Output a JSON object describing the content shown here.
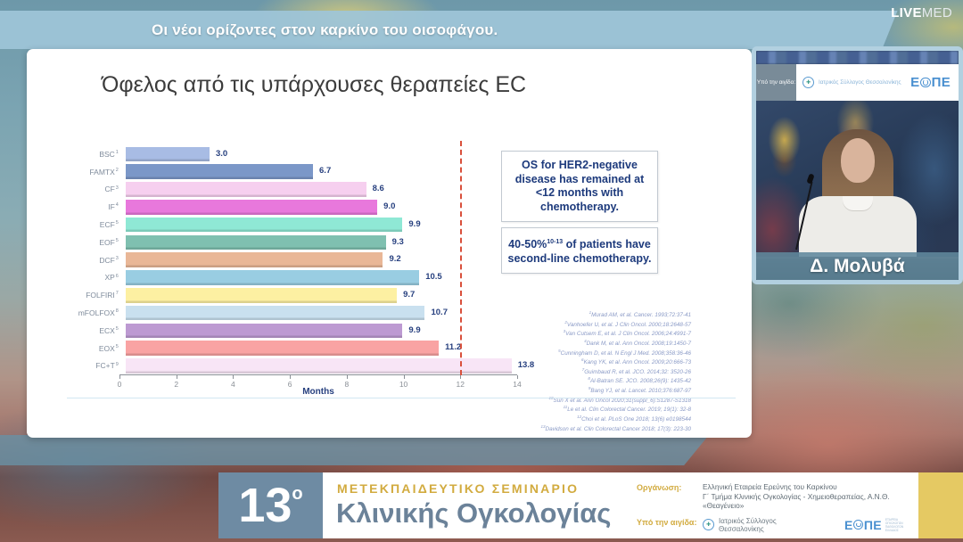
{
  "top_bar": {
    "title": "Οι νέοι ορίζοντες στον καρκίνο του οισοφάγου.",
    "brand_live": "LIVE",
    "brand_med": "MED"
  },
  "slide": {
    "title": "Όφελος από τις υπάρχουσες θεραπείες EC",
    "chart_data": {
      "type": "bar",
      "orientation": "horizontal",
      "categories": [
        "BSC",
        "FAMTX",
        "CF",
        "IF",
        "ECF",
        "EOF",
        "DCF",
        "XP",
        "FOLFIRI",
        "mFOLFOX",
        "ECX",
        "EOX",
        "FC+T"
      ],
      "category_superscripts": [
        "1",
        "2",
        "3",
        "4",
        "5",
        "5",
        "3",
        "6",
        "7",
        "8",
        "5",
        "5",
        "9"
      ],
      "values": [
        3.0,
        6.7,
        8.6,
        9.0,
        9.9,
        9.3,
        9.2,
        10.5,
        9.7,
        10.7,
        9.9,
        11.2,
        13.8
      ],
      "bar_colors": [
        "#a8bce4",
        "#7b97c8",
        "#f6cfef",
        "#e878dc",
        "#8fe8d5",
        "#7fc0b0",
        "#e9b797",
        "#99cde2",
        "#fdf0a2",
        "#c9e0ef",
        "#bd9ad2",
        "#f9a3a3",
        "#f8e5f6"
      ],
      "xlabel": "Months",
      "xlim": [
        0,
        14
      ],
      "xticks": [
        0,
        2,
        4,
        6,
        8,
        10,
        12,
        14
      ],
      "reference_line_x": 12,
      "reference_line_color": "#d9503c",
      "grid": false,
      "legend": false
    },
    "callouts": {
      "box1": "OS for HER2-negative disease has remained at <12 months with chemotherapy.",
      "box2_prefix": "40-50%",
      "box2_sup": "10-13",
      "box2_suffix": " of patients have second-line chemotherapy."
    },
    "references": [
      {
        "sup": "1",
        "text": "Murad AM, et al. Cancer. 1993;72:37-41"
      },
      {
        "sup": "2",
        "text": "Vanhoefer U, et al. J Clin Oncol. 2000;18:2648-57"
      },
      {
        "sup": "3",
        "text": "Van Cutsem E, et al. J Clin Oncol. 2006;24:4991-7"
      },
      {
        "sup": "4",
        "text": "Dank M, et al. Ann Oncol. 2008;19:1450-7"
      },
      {
        "sup": "5",
        "text": "Cunningham D, et al. N Engl J Med. 2008;358:36-46"
      },
      {
        "sup": "6",
        "text": "Kang YK, et al. Ann Oncol. 2009;20:666-73"
      },
      {
        "sup": "7",
        "text": "Guimbaud R, et al. JCO. 2014;32: 3520-26"
      },
      {
        "sup": "8",
        "text": "Al-Batran SE. JCO. 2008;26(9): 1435-42"
      },
      {
        "sup": "9",
        "text": "Bang YJ, et al. Lancet. 2010;376:687-97"
      },
      {
        "sup": "10",
        "text": "Sun X et al. Ann Oncol 2020;31(suppl_6):S1287-S1318"
      },
      {
        "sup": "11",
        "text": "Le et al. Clin Colorectal Cancer. 2019; 19(1): 32-8"
      },
      {
        "sup": "12",
        "text": "Choi et al. PLoS One 2018; 13(6) e0198544"
      },
      {
        "sup": "13",
        "text": "Davidson et al. Clin Colorectal Cancer 2018; 17(3): 223-30"
      }
    ]
  },
  "video": {
    "aegis_label": "Υπό την αιγίδα:",
    "speaker_name": "Δ. Μολυβά"
  },
  "logos": {
    "eope_e": "Ε",
    "eope_pe": "ΠΕ",
    "eope_full": "ΕΟΠΕ",
    "medical_association": "Ιατρικός Σύλλογος Θεσσαλονίκης",
    "ms_cross": "✚",
    "eope_sub1": "ΕΤΑΙΡΕΙΑ",
    "eope_sub2": "ΟΓΚΟΛΟΓΩΝ ΠΑΘΟΛΟΓΩΝ",
    "eope_sub3": "ΕΛΛΑΔΟΣ"
  },
  "footer": {
    "edition_number": "13",
    "edition_sup": "ο",
    "seminar_line1": "ΜΕΤΕΚΠΑΙΔΕΥΤΙΚΟ ΣΕΜΙΝΑΡΙΟ",
    "seminar_line2": "Κλινικής Ογκολογίας",
    "organizer_label": "Οργάνωση:",
    "organizer_line1": "Ελληνική Εταιρεία Ερεύνης του Καρκίνου",
    "organizer_line2": "Γ΄ Τμήμα Κλινικής Ογκολογίας - Χημειοθεραπείας, Α.Ν.Θ. «Θεαγένειο»",
    "aegis_label": "Υπό την αιγίδα:",
    "aegis_org": "Ιατρικός Σύλλογος Θεσσαλονίκης"
  }
}
